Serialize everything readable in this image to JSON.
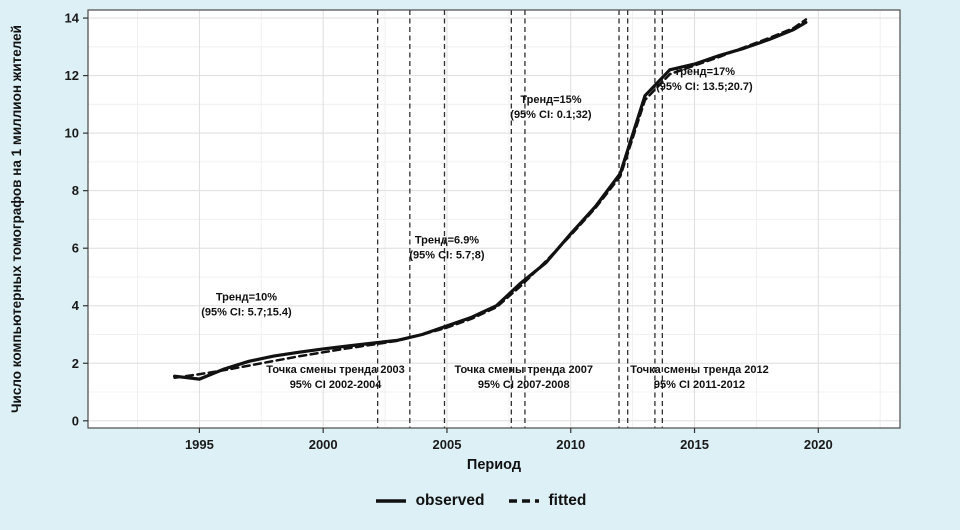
{
  "page": {
    "background_color": "#dcf0f6"
  },
  "chart_data": {
    "type": "line",
    "title": "",
    "xlabel": "Период",
    "ylabel": "Число компьютерных томографов на 1 миллион жителей",
    "xlim": [
      1990.5,
      2023.3
    ],
    "ylim": [
      -0.25,
      14.28
    ],
    "x_ticks": [
      1995,
      2000,
      2005,
      2010,
      2015,
      2020
    ],
    "y_ticks": [
      0,
      2,
      4,
      6,
      8,
      10,
      12,
      14
    ],
    "grid": true,
    "legend_position": "bottom",
    "line_color": "#111111",
    "x": [
      1994,
      1995,
      1996,
      1997,
      1998,
      1999,
      2000,
      2001,
      2002,
      2003,
      2004,
      2005,
      2006,
      2007,
      2008,
      2009,
      2010,
      2011,
      2012,
      2013,
      2014,
      2015,
      2016,
      2017,
      2018,
      2019,
      2019.5
    ],
    "series": [
      {
        "name": "observed",
        "style": "solid",
        "values": [
          1.55,
          1.45,
          1.8,
          2.07,
          2.25,
          2.38,
          2.5,
          2.6,
          2.7,
          2.8,
          3.0,
          3.3,
          3.6,
          4.0,
          4.8,
          5.5,
          6.5,
          7.45,
          8.6,
          11.3,
          12.2,
          12.4,
          12.7,
          12.95,
          13.25,
          13.6,
          13.85
        ]
      },
      {
        "name": "fitted",
        "style": "dashed",
        "values": [
          1.5,
          1.62,
          1.76,
          1.92,
          2.08,
          2.24,
          2.38,
          2.52,
          2.65,
          2.78,
          3.0,
          3.24,
          3.55,
          3.95,
          4.7,
          5.55,
          6.45,
          7.4,
          8.5,
          11.15,
          12.05,
          12.35,
          12.65,
          12.98,
          13.3,
          13.65,
          13.95
        ]
      }
    ],
    "joinpoint_vlines": [
      2002.2,
      2003.5,
      2004.9,
      2007.6,
      2008.15,
      2011.95,
      2012.3,
      2013.4,
      2013.7
    ],
    "annotations": [
      {
        "x": 1996.9,
        "y": 4.32,
        "lines": [
          "Тренд=10%",
          "(95% CI: 5.7;15.4)"
        ]
      },
      {
        "x": 2005.0,
        "y": 6.3,
        "lines": [
          "Тренд=6.9%",
          "(95% CI: 5.7;8)"
        ]
      },
      {
        "x": 2009.2,
        "y": 11.18,
        "lines": [
          "Тренд=15%",
          "(95% CI: 0.1;32)"
        ]
      },
      {
        "x": 2015.4,
        "y": 12.16,
        "lines": [
          "Тренд=17%",
          "(95% CI: 13.5;20.7)"
        ]
      },
      {
        "x": 2000.5,
        "y": 1.8,
        "lines": [
          "Точка смены тренда 2003",
          "95% CI 2002-2004"
        ]
      },
      {
        "x": 2008.1,
        "y": 1.8,
        "lines": [
          "Точка смены тренда 2007",
          "95% CI 2007-2008"
        ]
      },
      {
        "x": 2015.2,
        "y": 1.8,
        "lines": [
          "Точка смены тренда 2012",
          "95% CI 2011-2012"
        ]
      }
    ]
  }
}
